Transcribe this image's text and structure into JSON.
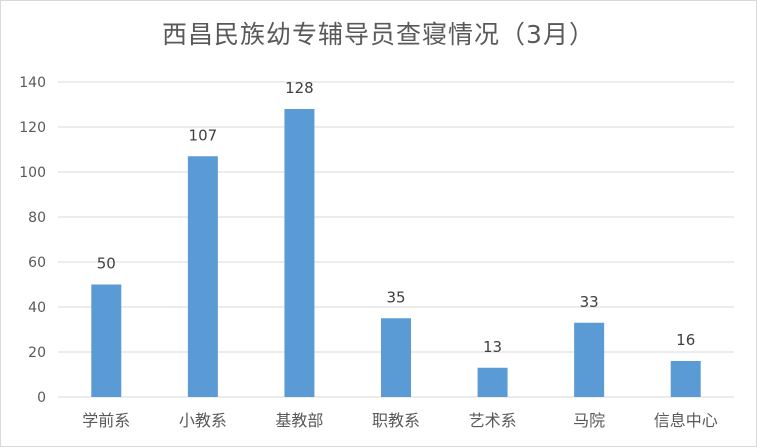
{
  "chart_data": {
    "type": "bar",
    "title": "西昌民族幼专辅导员查寝情况（3月）",
    "categories": [
      "学前系",
      "小教系",
      "基教部",
      "职教系",
      "艺术系",
      "马院",
      "信息中心"
    ],
    "values": [
      50,
      107,
      128,
      35,
      13,
      33,
      16
    ],
    "yticks": [
      0,
      20,
      40,
      60,
      80,
      100,
      120,
      140
    ],
    "ylim": [
      0,
      140
    ],
    "xlabel": "",
    "ylabel": "",
    "grid": true,
    "legend": "none",
    "bar_color": "#5b9bd5",
    "grid_color": "#d9d9d9"
  }
}
